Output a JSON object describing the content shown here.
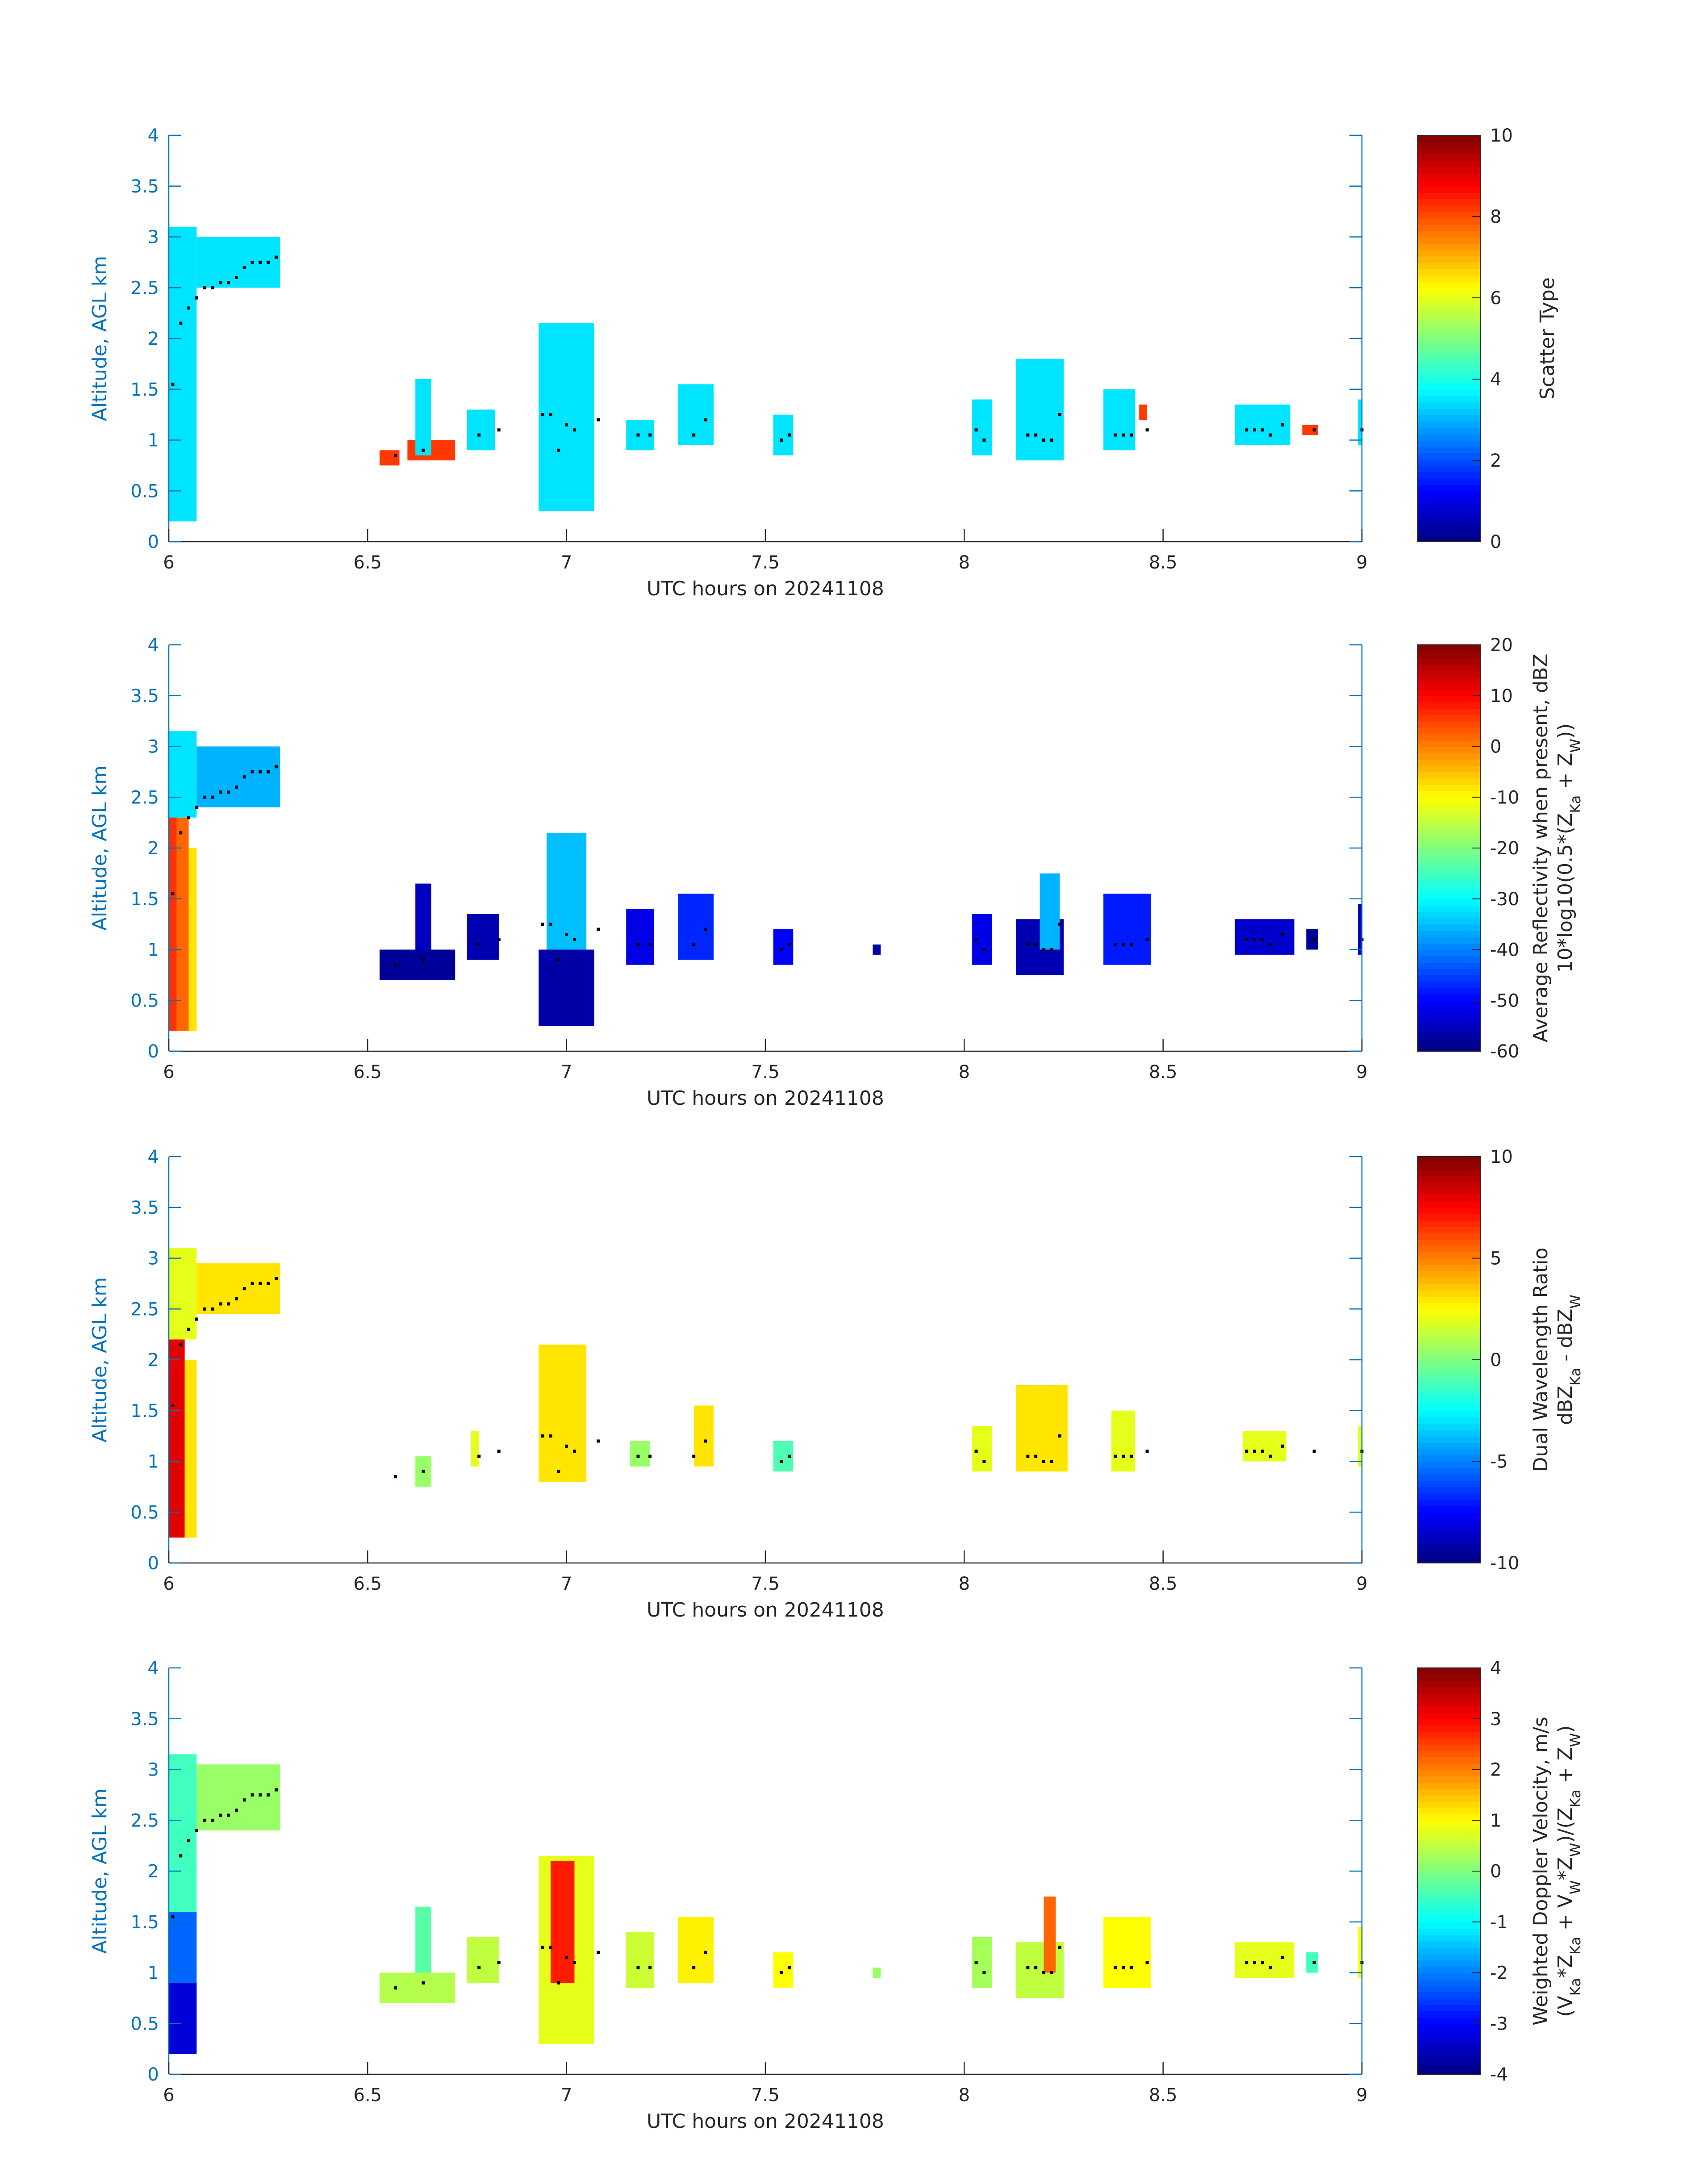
{
  "figure": {
    "date": "20241108",
    "xlabel": "UTC hours on 20241108",
    "ylabel": "Altitude, AGL km",
    "xlim": [
      6,
      9
    ],
    "ylim": [
      0,
      4
    ],
    "xticks": [
      "6",
      "6.5",
      "7",
      "7.5",
      "8",
      "8.5",
      "9"
    ],
    "yticks": [
      "0",
      "0.5",
      "1",
      "1.5",
      "2",
      "2.5",
      "3",
      "3.5",
      "4"
    ],
    "axis_color": "#0072bd",
    "colormap": "jet"
  },
  "chart_data": [
    {
      "type": "heatmap",
      "title": "",
      "xlabel": "UTC hours on 20241108",
      "ylabel": "Altitude, AGL km",
      "colorbar_label": "Scatter Type",
      "colorbar_label_2": "",
      "clim": [
        0,
        10
      ],
      "colorbar_ticks": [
        "0",
        "2",
        "4",
        "6",
        "8",
        "10"
      ],
      "cells": [
        {
          "t0": 6.0,
          "t1": 6.07,
          "z0": 0.2,
          "z1": 3.1,
          "v": 3.5
        },
        {
          "t0": 6.07,
          "t1": 6.28,
          "z0": 2.5,
          "z1": 3.0,
          "v": 3.5
        },
        {
          "t0": 6.53,
          "t1": 6.58,
          "z0": 0.75,
          "z1": 0.9,
          "v": 8.2
        },
        {
          "t0": 6.6,
          "t1": 6.72,
          "z0": 0.8,
          "z1": 1.0,
          "v": 8.2
        },
        {
          "t0": 6.62,
          "t1": 6.66,
          "z0": 0.85,
          "z1": 1.6,
          "v": 3.5
        },
        {
          "t0": 6.75,
          "t1": 6.82,
          "z0": 0.9,
          "z1": 1.3,
          "v": 3.5
        },
        {
          "t0": 6.93,
          "t1": 7.07,
          "z0": 0.3,
          "z1": 2.15,
          "v": 3.5
        },
        {
          "t0": 7.15,
          "t1": 7.22,
          "z0": 0.9,
          "z1": 1.2,
          "v": 3.5
        },
        {
          "t0": 7.28,
          "t1": 7.37,
          "z0": 0.95,
          "z1": 1.55,
          "v": 3.5
        },
        {
          "t0": 7.52,
          "t1": 7.57,
          "z0": 0.85,
          "z1": 1.25,
          "v": 3.5
        },
        {
          "t0": 8.02,
          "t1": 8.07,
          "z0": 0.85,
          "z1": 1.4,
          "v": 3.5
        },
        {
          "t0": 8.13,
          "t1": 8.25,
          "z0": 0.8,
          "z1": 1.8,
          "v": 3.5
        },
        {
          "t0": 8.35,
          "t1": 8.43,
          "z0": 0.9,
          "z1": 1.5,
          "v": 3.5
        },
        {
          "t0": 8.44,
          "t1": 8.46,
          "z0": 1.2,
          "z1": 1.35,
          "v": 8.2
        },
        {
          "t0": 8.68,
          "t1": 8.82,
          "z0": 0.95,
          "z1": 1.35,
          "v": 3.5
        },
        {
          "t0": 8.85,
          "t1": 8.89,
          "z0": 1.05,
          "z1": 1.15,
          "v": 8.2
        },
        {
          "t0": 8.99,
          "t1": 9.0,
          "z0": 0.95,
          "z1": 1.4,
          "v": 3.5
        }
      ]
    },
    {
      "type": "heatmap",
      "title": "",
      "xlabel": "UTC hours on 20241108",
      "ylabel": "Altitude, AGL km",
      "colorbar_label": "Average Reflectivity when present, dBZ",
      "colorbar_label_2": "10*log10(0.5*(Z_Ka + Z_W))",
      "clim": [
        -60,
        20
      ],
      "colorbar_ticks": [
        "-60",
        "-50",
        "-40",
        "-30",
        "-20",
        "-10",
        "0",
        "10",
        "20"
      ],
      "cells": [
        {
          "t0": 6.0,
          "t1": 6.02,
          "z0": 0.2,
          "z1": 2.5,
          "v": 6
        },
        {
          "t0": 6.02,
          "t1": 6.05,
          "z0": 0.2,
          "z1": 2.3,
          "v": 2
        },
        {
          "t0": 6.05,
          "t1": 6.07,
          "z0": 0.2,
          "z1": 2.0,
          "v": -8
        },
        {
          "t0": 6.0,
          "t1": 6.07,
          "z0": 2.3,
          "z1": 3.15,
          "v": -32
        },
        {
          "t0": 6.07,
          "t1": 6.28,
          "z0": 2.4,
          "z1": 3.0,
          "v": -36
        },
        {
          "t0": 6.53,
          "t1": 6.72,
          "z0": 0.7,
          "z1": 1.0,
          "v": -58
        },
        {
          "t0": 6.62,
          "t1": 6.66,
          "z0": 1.0,
          "z1": 1.65,
          "v": -55
        },
        {
          "t0": 6.75,
          "t1": 6.83,
          "z0": 0.9,
          "z1": 1.35,
          "v": -56
        },
        {
          "t0": 6.93,
          "t1": 7.07,
          "z0": 0.25,
          "z1": 1.0,
          "v": -57
        },
        {
          "t0": 6.95,
          "t1": 7.05,
          "z0": 1.0,
          "z1": 2.15,
          "v": -35
        },
        {
          "t0": 7.15,
          "t1": 7.22,
          "z0": 0.85,
          "z1": 1.4,
          "v": -52
        },
        {
          "t0": 7.28,
          "t1": 7.37,
          "z0": 0.9,
          "z1": 1.55,
          "v": -47
        },
        {
          "t0": 7.52,
          "t1": 7.57,
          "z0": 0.85,
          "z1": 1.2,
          "v": -50
        },
        {
          "t0": 7.77,
          "t1": 7.79,
          "z0": 0.95,
          "z1": 1.05,
          "v": -57
        },
        {
          "t0": 8.02,
          "t1": 8.07,
          "z0": 0.85,
          "z1": 1.35,
          "v": -52
        },
        {
          "t0": 8.13,
          "t1": 8.25,
          "z0": 0.75,
          "z1": 1.3,
          "v": -56
        },
        {
          "t0": 8.19,
          "t1": 8.24,
          "z0": 1.0,
          "z1": 1.75,
          "v": -36
        },
        {
          "t0": 8.35,
          "t1": 8.47,
          "z0": 0.85,
          "z1": 1.55,
          "v": -48
        },
        {
          "t0": 8.68,
          "t1": 8.83,
          "z0": 0.95,
          "z1": 1.3,
          "v": -54
        },
        {
          "t0": 8.86,
          "t1": 8.89,
          "z0": 1.0,
          "z1": 1.2,
          "v": -58
        },
        {
          "t0": 8.99,
          "t1": 9.0,
          "z0": 0.95,
          "z1": 1.45,
          "v": -55
        }
      ]
    },
    {
      "type": "heatmap",
      "title": "",
      "xlabel": "UTC hours on 20241108",
      "ylabel": "Altitude, AGL km",
      "colorbar_label": "Dual Wavelength Ratio",
      "colorbar_label_2": "dBZ_Ka - dBZ_W",
      "clim": [
        -10,
        10
      ],
      "colorbar_ticks": [
        "-10",
        "-5",
        "0",
        "5",
        "10"
      ],
      "cells": [
        {
          "t0": 6.0,
          "t1": 6.04,
          "z0": 0.25,
          "z1": 2.2,
          "v": 8
        },
        {
          "t0": 6.04,
          "t1": 6.07,
          "z0": 0.25,
          "z1": 2.0,
          "v": 3
        },
        {
          "t0": 6.0,
          "t1": 6.07,
          "z0": 2.2,
          "z1": 3.1,
          "v": 2
        },
        {
          "t0": 6.07,
          "t1": 6.28,
          "z0": 2.45,
          "z1": 2.95,
          "v": 3
        },
        {
          "t0": 6.62,
          "t1": 6.66,
          "z0": 0.75,
          "z1": 1.05,
          "v": 0.5
        },
        {
          "t0": 6.76,
          "t1": 6.78,
          "z0": 0.95,
          "z1": 1.3,
          "v": 2
        },
        {
          "t0": 6.93,
          "t1": 7.05,
          "z0": 0.8,
          "z1": 2.15,
          "v": 3
        },
        {
          "t0": 7.16,
          "t1": 7.21,
          "z0": 0.95,
          "z1": 1.2,
          "v": 0.5
        },
        {
          "t0": 7.32,
          "t1": 7.37,
          "z0": 0.95,
          "z1": 1.55,
          "v": 3
        },
        {
          "t0": 7.52,
          "t1": 7.57,
          "z0": 0.9,
          "z1": 1.2,
          "v": -1
        },
        {
          "t0": 8.02,
          "t1": 8.07,
          "z0": 0.9,
          "z1": 1.35,
          "v": 2
        },
        {
          "t0": 8.13,
          "t1": 8.26,
          "z0": 0.9,
          "z1": 1.75,
          "v": 3
        },
        {
          "t0": 8.37,
          "t1": 8.43,
          "z0": 0.9,
          "z1": 1.5,
          "v": 2
        },
        {
          "t0": 8.7,
          "t1": 8.81,
          "z0": 1.0,
          "z1": 1.3,
          "v": 2
        },
        {
          "t0": 8.99,
          "t1": 9.0,
          "z0": 0.95,
          "z1": 1.35,
          "v": 2
        }
      ]
    },
    {
      "type": "heatmap",
      "title": "",
      "xlabel": "UTC hours on 20241108",
      "ylabel": "Altitude, AGL km",
      "colorbar_label": "Weighted Doppler Velocity, m/s",
      "colorbar_label_2": "(V_Ka*Z_Ka + V_W*Z_W)/(Z_Ka + Z_W)",
      "clim": [
        -4,
        4
      ],
      "colorbar_ticks": [
        "-4",
        "-3",
        "-2",
        "-1",
        "0",
        "1",
        "2",
        "3",
        "4"
      ],
      "cells": [
        {
          "t0": 6.0,
          "t1": 6.07,
          "z0": 0.2,
          "z1": 0.9,
          "v": -3.3
        },
        {
          "t0": 6.0,
          "t1": 6.07,
          "z0": 0.9,
          "z1": 1.6,
          "v": -2.2
        },
        {
          "t0": 6.0,
          "t1": 6.07,
          "z0": 1.6,
          "z1": 3.15,
          "v": -0.5
        },
        {
          "t0": 6.07,
          "t1": 6.28,
          "z0": 2.4,
          "z1": 3.05,
          "v": 0.2
        },
        {
          "t0": 6.53,
          "t1": 6.72,
          "z0": 0.7,
          "z1": 1.0,
          "v": 0.4
        },
        {
          "t0": 6.62,
          "t1": 6.66,
          "z0": 1.0,
          "z1": 1.65,
          "v": -0.3
        },
        {
          "t0": 6.75,
          "t1": 6.83,
          "z0": 0.9,
          "z1": 1.35,
          "v": 0.5
        },
        {
          "t0": 6.93,
          "t1": 7.07,
          "z0": 0.3,
          "z1": 2.15,
          "v": 0.8
        },
        {
          "t0": 6.96,
          "t1": 7.02,
          "z0": 0.9,
          "z1": 2.1,
          "v": 2.8
        },
        {
          "t0": 7.15,
          "t1": 7.22,
          "z0": 0.85,
          "z1": 1.4,
          "v": 0.6
        },
        {
          "t0": 7.28,
          "t1": 7.37,
          "z0": 0.9,
          "z1": 1.55,
          "v": 1.1
        },
        {
          "t0": 7.52,
          "t1": 7.57,
          "z0": 0.85,
          "z1": 1.2,
          "v": 1.0
        },
        {
          "t0": 7.77,
          "t1": 7.79,
          "z0": 0.95,
          "z1": 1.05,
          "v": 0.2
        },
        {
          "t0": 8.02,
          "t1": 8.07,
          "z0": 0.85,
          "z1": 1.35,
          "v": 0.3
        },
        {
          "t0": 8.13,
          "t1": 8.25,
          "z0": 0.75,
          "z1": 1.3,
          "v": 0.5
        },
        {
          "t0": 8.2,
          "t1": 8.23,
          "z0": 1.0,
          "z1": 1.75,
          "v": 2.2
        },
        {
          "t0": 8.35,
          "t1": 8.47,
          "z0": 0.85,
          "z1": 1.55,
          "v": 1.0
        },
        {
          "t0": 8.68,
          "t1": 8.83,
          "z0": 0.95,
          "z1": 1.3,
          "v": 0.8
        },
        {
          "t0": 8.86,
          "t1": 8.89,
          "z0": 1.0,
          "z1": 1.2,
          "v": -0.5
        },
        {
          "t0": 8.99,
          "t1": 9.0,
          "z0": 0.95,
          "z1": 1.45,
          "v": 1.0
        }
      ]
    }
  ],
  "cloud_top_markers": {
    "color": "#000000",
    "points": [
      [
        6.01,
        1.55
      ],
      [
        6.03,
        2.15
      ],
      [
        6.05,
        2.3
      ],
      [
        6.07,
        2.4
      ],
      [
        6.09,
        2.5
      ],
      [
        6.11,
        2.5
      ],
      [
        6.13,
        2.55
      ],
      [
        6.15,
        2.55
      ],
      [
        6.17,
        2.6
      ],
      [
        6.19,
        2.7
      ],
      [
        6.21,
        2.75
      ],
      [
        6.23,
        2.75
      ],
      [
        6.25,
        2.75
      ],
      [
        6.27,
        2.8
      ],
      [
        6.57,
        0.85
      ],
      [
        6.64,
        0.9
      ],
      [
        6.78,
        1.05
      ],
      [
        6.83,
        1.1
      ],
      [
        6.94,
        1.25
      ],
      [
        6.96,
        1.25
      ],
      [
        6.98,
        0.9
      ],
      [
        7.0,
        1.15
      ],
      [
        7.02,
        1.1
      ],
      [
        7.08,
        1.2
      ],
      [
        7.18,
        1.05
      ],
      [
        7.21,
        1.05
      ],
      [
        7.32,
        1.05
      ],
      [
        7.35,
        1.2
      ],
      [
        7.54,
        1.0
      ],
      [
        7.56,
        1.05
      ],
      [
        8.03,
        1.1
      ],
      [
        8.05,
        1.0
      ],
      [
        8.16,
        1.05
      ],
      [
        8.18,
        1.05
      ],
      [
        8.2,
        1.0
      ],
      [
        8.22,
        1.0
      ],
      [
        8.24,
        1.25
      ],
      [
        8.38,
        1.05
      ],
      [
        8.4,
        1.05
      ],
      [
        8.42,
        1.05
      ],
      [
        8.46,
        1.1
      ],
      [
        8.71,
        1.1
      ],
      [
        8.73,
        1.1
      ],
      [
        8.75,
        1.1
      ],
      [
        8.77,
        1.05
      ],
      [
        8.8,
        1.15
      ],
      [
        8.88,
        1.1
      ],
      [
        9.0,
        1.1
      ]
    ]
  }
}
